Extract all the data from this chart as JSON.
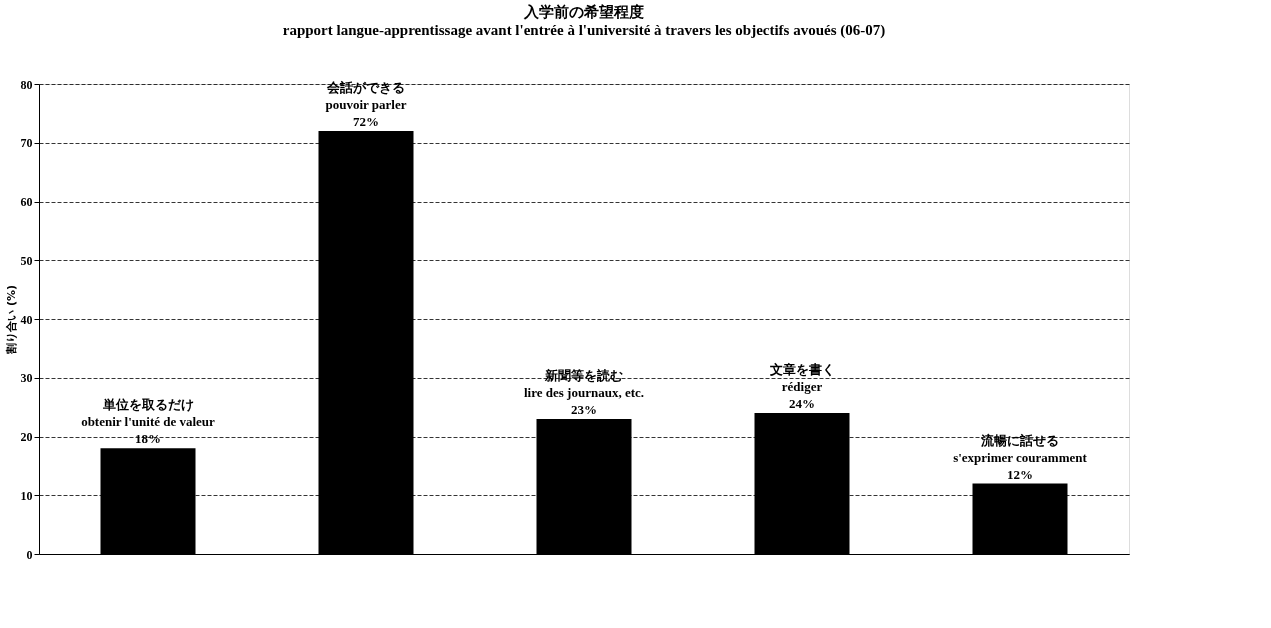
{
  "chart_data": {
    "type": "bar",
    "title": "入学前の希望程度",
    "subtitle": "rapport langue-apprentissage avant l'entrée à l'université à travers les objectifs avoués (06-07)",
    "categories": [
      "単位を取るだけ\nobtenir l'unité de valeur",
      "会話ができる\npouvoir parler",
      "新聞等を読む\nlire des journaux, etc.",
      "文章を書く\nrédiger",
      "流暢に話せる\ns'exprimer  couramment"
    ],
    "values": [
      18,
      72,
      23,
      24,
      12
    ],
    "value_labels": [
      "18%",
      "72%",
      "23%",
      "24%",
      "12%"
    ],
    "color": "#000000",
    "ylabel": "割り合い (%)",
    "ylim": [
      0,
      80
    ],
    "yticks": [
      0,
      10,
      20,
      30,
      40,
      50,
      60,
      70,
      80
    ],
    "grid": "y",
    "tick_labels": "y"
  }
}
